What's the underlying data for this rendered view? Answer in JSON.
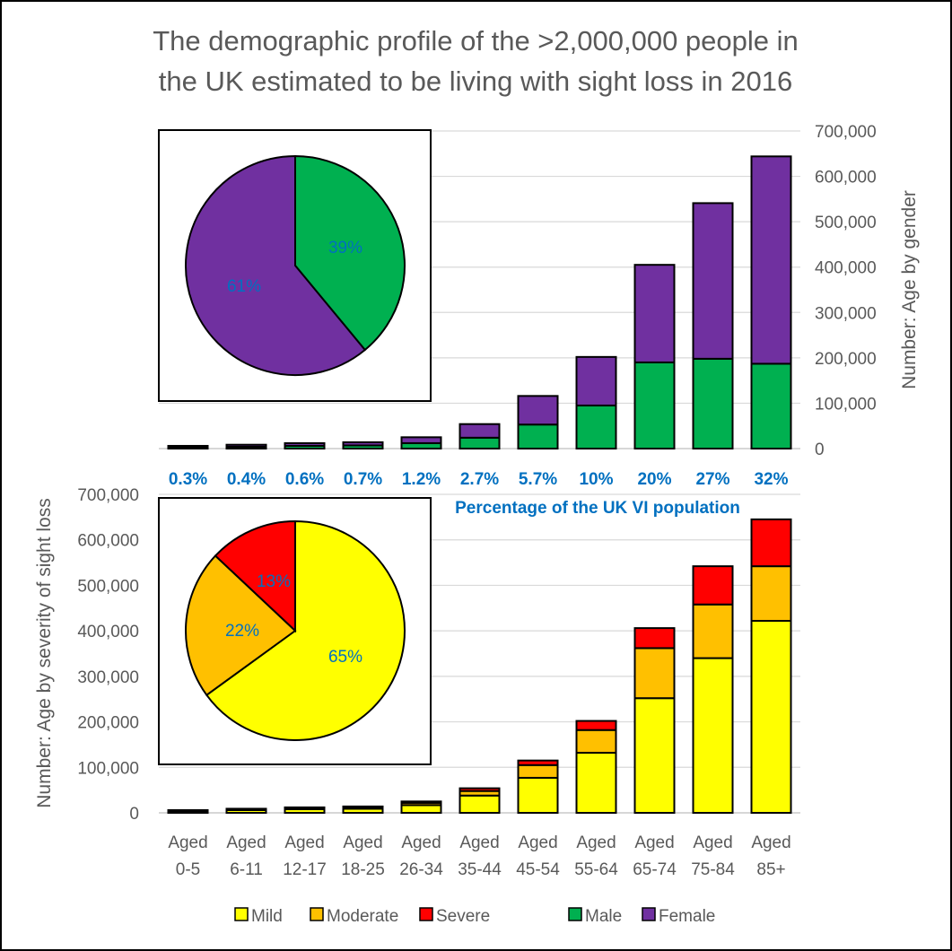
{
  "title_line1": "The demographic profile of the >2,000,000 people in",
  "title_line2": "the UK estimated to be living with sight loss in 2016",
  "chart_data": [
    {
      "type": "bar",
      "stacked": true,
      "ylabel": "Number: Age by gender",
      "ylim": [
        0,
        700000
      ],
      "yticks": [
        "0",
        "100,000",
        "200,000",
        "300,000",
        "400,000",
        "500,000",
        "600,000",
        "700,000"
      ],
      "categories": [
        "Aged 0-5",
        "Aged 6-11",
        "Aged 12-17",
        "Aged 18-25",
        "Aged 26-34",
        "Aged 35-44",
        "Aged 45-54",
        "Aged 55-64",
        "Aged 65-74",
        "Aged 75-84",
        "Aged 85+"
      ],
      "series": [
        {
          "name": "Male",
          "color": "#00b050",
          "values": [
            3000,
            4000,
            6000,
            7000,
            12000,
            24000,
            53000,
            95000,
            190000,
            198000,
            187000
          ]
        },
        {
          "name": "Female",
          "color": "#7030a0",
          "values": [
            3000,
            4500,
            6000,
            7000,
            13000,
            30000,
            63000,
            107000,
            215000,
            343000,
            457000
          ]
        }
      ],
      "percentages": [
        "0.3%",
        "0.4%",
        "0.6%",
        "0.7%",
        "1.2%",
        "2.7%",
        "5.7%",
        "10%",
        "20%",
        "27%",
        "32%"
      ],
      "percentages_label": "Percentage of the UK VI population",
      "inset_pie": {
        "slices": [
          {
            "name": "Male",
            "value": 39,
            "label": "39%",
            "color": "#00b050"
          },
          {
            "name": "Female",
            "value": 61,
            "label": "61%",
            "color": "#7030a0"
          }
        ]
      }
    },
    {
      "type": "bar",
      "stacked": true,
      "ylabel": "Number: Age by severity of sight loss",
      "ylim": [
        0,
        700000
      ],
      "yticks": [
        "0",
        "100,000",
        "200,000",
        "300,000",
        "400,000",
        "500,000",
        "600,000",
        "700,000"
      ],
      "categories": [
        "Aged 0-5",
        "Aged 6-11",
        "Aged 12-17",
        "Aged 18-25",
        "Aged 26-34",
        "Aged 35-44",
        "Aged 45-54",
        "Aged 55-64",
        "Aged 65-74",
        "Aged 75-84",
        "Aged 85+"
      ],
      "series": [
        {
          "name": "Mild",
          "color": "#ffff00",
          "values": [
            4000,
            6000,
            8000,
            9000,
            17000,
            38000,
            77000,
            132000,
            252000,
            340000,
            422000
          ]
        },
        {
          "name": "Moderate",
          "color": "#ffc000",
          "values": [
            1500,
            2000,
            2500,
            3000,
            5000,
            10000,
            28000,
            50000,
            110000,
            118000,
            120000
          ]
        },
        {
          "name": "Severe",
          "color": "#ff0000",
          "values": [
            500,
            1000,
            1500,
            2000,
            3000,
            6000,
            10000,
            20000,
            44000,
            84000,
            103000
          ]
        }
      ],
      "inset_pie": {
        "slices": [
          {
            "name": "Mild",
            "value": 65,
            "label": "65%",
            "color": "#ffff00"
          },
          {
            "name": "Moderate",
            "value": 22,
            "label": "22%",
            "color": "#ffc000"
          },
          {
            "name": "Severe",
            "value": 13,
            "label": "13%",
            "color": "#ff0000"
          }
        ]
      }
    }
  ],
  "category_labels": [
    {
      "line1": "Aged",
      "line2": "0-5"
    },
    {
      "line1": "Aged",
      "line2": "6-11"
    },
    {
      "line1": "Aged",
      "line2": "12-17"
    },
    {
      "line1": "Aged",
      "line2": "18-25"
    },
    {
      "line1": "Aged",
      "line2": "26-34"
    },
    {
      "line1": "Aged",
      "line2": "35-44"
    },
    {
      "line1": "Aged",
      "line2": "45-54"
    },
    {
      "line1": "Aged",
      "line2": "55-64"
    },
    {
      "line1": "Aged",
      "line2": "65-74"
    },
    {
      "line1": "Aged",
      "line2": "75-84"
    },
    {
      "line1": "Aged",
      "line2": "85+"
    }
  ],
  "legend": [
    {
      "name": "Mild",
      "color": "#ffff00"
    },
    {
      "name": "Moderate",
      "color": "#ffc000"
    },
    {
      "name": "Severe",
      "color": "#ff0000"
    },
    {
      "name": "Male",
      "color": "#00b050"
    },
    {
      "name": "Female",
      "color": "#7030a0"
    }
  ]
}
